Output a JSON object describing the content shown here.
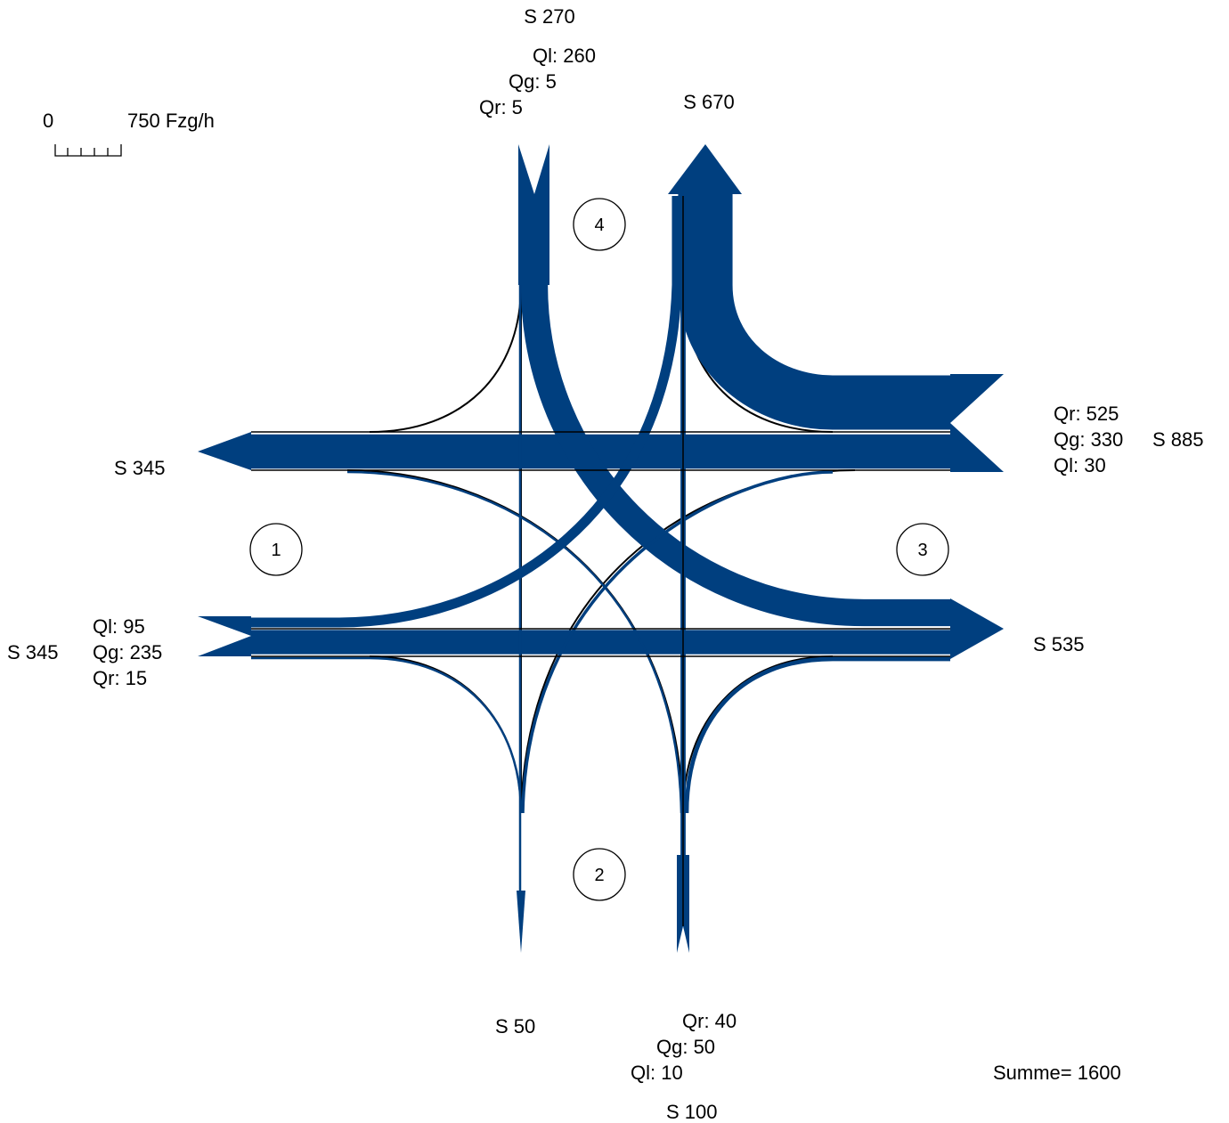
{
  "colors": {
    "flow": "#003f7f",
    "outline": "#000000",
    "background": "#ffffff"
  },
  "scale": {
    "zero_label": "0",
    "max_label": "750 Fzg/h"
  },
  "total": {
    "label": "Summe= 1600"
  },
  "arms": {
    "north": {
      "sum_in": "S 270",
      "sum_out": "S 670",
      "ql": "Ql: 260",
      "qg": "Qg: 5",
      "qr": "Qr: 5",
      "node": "4"
    },
    "east": {
      "sum_in": "S 885",
      "sum_out": "S 535",
      "ql": "Ql: 30",
      "qg": "Qg: 330",
      "qr": "Qr: 525",
      "node": "3"
    },
    "south": {
      "sum_in": "S 100",
      "sum_out": "S 50",
      "ql": "Ql: 10",
      "qg": "Qg: 50",
      "qr": "Qr: 40",
      "node": "2"
    },
    "west": {
      "sum_in": "S 345",
      "sum_out": "S 345",
      "ql": "Ql: 95",
      "qg": "Qg: 235",
      "qr": "Qr: 15",
      "node": "1"
    }
  },
  "flows_vehicles_per_hour": {
    "west_to_east": 235,
    "west_to_north": 95,
    "west_to_south": 15,
    "east_to_west": 330,
    "east_to_north": 525,
    "east_to_south": 30,
    "north_to_east": 260,
    "north_to_south": 5,
    "north_to_west": 5,
    "south_to_north": 50,
    "south_to_east": 40,
    "south_to_west": 10
  }
}
